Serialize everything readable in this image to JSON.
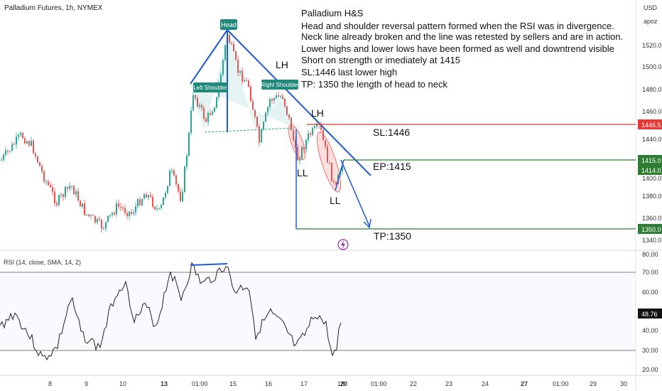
{
  "header": {
    "symbol_title": "Palladium Futures, 1h, NYMEX"
  },
  "price_axis": {
    "currency": "USD",
    "account": "apoz",
    "ticks": [
      "1520.0",
      "1500.0",
      "1480.0",
      "1460.0",
      "1440.0",
      "1400.0",
      "1380.0",
      "1360.0",
      "1340.0"
    ],
    "markers": [
      {
        "label": "1446.5",
        "color": "#e53935"
      },
      {
        "label": "1415.0",
        "color": "#2e7d32"
      },
      {
        "label": "1414.0",
        "color": "#2e7d32"
      },
      {
        "label": "1350.0",
        "color": "#2e7d32"
      }
    ]
  },
  "rsi_panel": {
    "label": "RSI (14, close, SMA, 14, 2)",
    "ticks": [
      "80.00",
      "70.00",
      "60.00",
      "40.00",
      "30.00",
      "20.00"
    ],
    "current_value": "48.76"
  },
  "time_axis": {
    "labels": [
      "8",
      "9",
      "10",
      "13",
      "01:00",
      "15",
      "16",
      "17",
      "18",
      "20",
      "01:00",
      "22",
      "23",
      "24",
      "27",
      "01:00",
      "29",
      "30"
    ]
  },
  "annotation": {
    "title": "Palladium H&S",
    "lines": [
      "Head and shoulder reversal pattern formed when the RSI was in divergence.",
      "Neck line already broken and the line was retested by sellers and are in action.",
      "Lower highs and lower lows have been formed as well and downtrend visible",
      "Short on strength or imediately at 1415",
      "SL:1446 last lower high",
      "TP: 1350 the length of head to neck"
    ]
  },
  "pattern_labels": {
    "head": "Head",
    "left_shoulder": "Left Shoulder",
    "right_shoulder": "Right Shoulder",
    "lh1": "LH",
    "lh2": "LH",
    "ll1": "LL",
    "ll2": "LL"
  },
  "levels": {
    "sl": "SL:1446",
    "ep": "EP:1415",
    "tp": "TP:1350"
  },
  "colors": {
    "up": "#26a69a",
    "down": "#ef5350",
    "sl_line": "#e53935",
    "tp_line": "#2e7d32",
    "trend": "#1e5ad6",
    "tag_bg": "#22897b"
  }
}
